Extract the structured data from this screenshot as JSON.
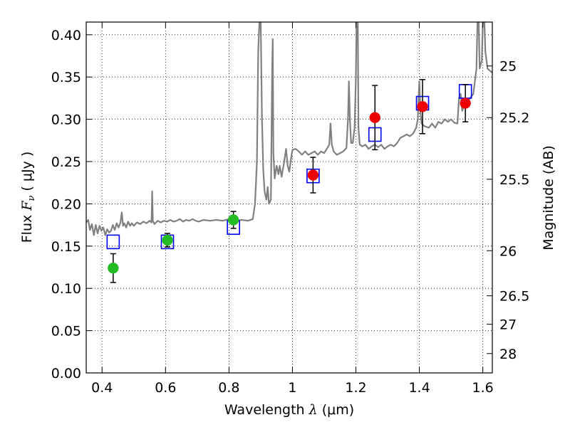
{
  "chart_data": {
    "type": "scatter",
    "title": "",
    "xlabel": "Wavelength  λ (μm)",
    "xlabel_parts": {
      "prefix": "Wavelength  ",
      "symbol": "λ",
      "unit": " (μm)"
    },
    "ylabel": "Flux  Fν  ( μJy )",
    "ylabel_parts": {
      "prefix": "Flux  ",
      "symbol": "F",
      "sub": "ν",
      "unit": "  ( μJy )"
    },
    "y2label": "Magnitude (AB)",
    "xlim": [
      0.35,
      1.63
    ],
    "ylim": [
      0.0,
      0.415
    ],
    "grid": true,
    "x_ticks": [
      {
        "value": 0.4,
        "label": "0.4"
      },
      {
        "value": 0.6,
        "label": "0.6"
      },
      {
        "value": 0.8,
        "label": "0.8"
      },
      {
        "value": 1.0,
        "label": "1"
      },
      {
        "value": 1.2,
        "label": "1.2"
      },
      {
        "value": 1.4,
        "label": "1.4"
      },
      {
        "value": 1.6,
        "label": "1.6"
      }
    ],
    "y_ticks": [
      {
        "value": 0.0,
        "label": "0.00"
      },
      {
        "value": 0.05,
        "label": "0.05"
      },
      {
        "value": 0.1,
        "label": "0.10"
      },
      {
        "value": 0.15,
        "label": "0.15"
      },
      {
        "value": 0.2,
        "label": "0.20"
      },
      {
        "value": 0.25,
        "label": "0.25"
      },
      {
        "value": 0.3,
        "label": "0.30"
      },
      {
        "value": 0.35,
        "label": "0.35"
      },
      {
        "value": 0.4,
        "label": "0.40"
      }
    ],
    "y2_ticks": [
      {
        "mag": 25,
        "label": "25"
      },
      {
        "mag": 25.2,
        "label": "25.2"
      },
      {
        "mag": 25.5,
        "label": "25.5"
      },
      {
        "mag": 26,
        "label": "26"
      },
      {
        "mag": 26.5,
        "label": "26.5"
      },
      {
        "mag": 27,
        "label": "27"
      },
      {
        "mag": 28,
        "label": "28"
      }
    ],
    "observed_points": [
      {
        "x": 0.435,
        "y": 0.124,
        "err": 0.017,
        "color": "#22bb22"
      },
      {
        "x": 0.606,
        "y": 0.157,
        "err": 0.008,
        "color": "#22bb22"
      },
      {
        "x": 0.814,
        "y": 0.181,
        "err": 0.01,
        "color": "#22bb22"
      },
      {
        "x": 1.065,
        "y": 0.234,
        "err": 0.021,
        "color": "#ee0000"
      },
      {
        "x": 1.26,
        "y": 0.302,
        "err": 0.038,
        "color": "#ee0000"
      },
      {
        "x": 1.41,
        "y": 0.315,
        "err": 0.032,
        "color": "#ee0000"
      },
      {
        "x": 1.545,
        "y": 0.319,
        "err": 0.022,
        "color": "#ee0000"
      }
    ],
    "model_points": [
      {
        "x": 0.435,
        "y": 0.155
      },
      {
        "x": 0.606,
        "y": 0.155
      },
      {
        "x": 0.814,
        "y": 0.172
      },
      {
        "x": 1.065,
        "y": 0.233
      },
      {
        "x": 1.26,
        "y": 0.282
      },
      {
        "x": 1.41,
        "y": 0.319
      },
      {
        "x": 1.545,
        "y": 0.333
      }
    ],
    "model_spectrum": {
      "color": "#808080",
      "points": [
        [
          0.35,
          0.178
        ],
        [
          0.356,
          0.181
        ],
        [
          0.362,
          0.169
        ],
        [
          0.368,
          0.176
        ],
        [
          0.374,
          0.163
        ],
        [
          0.38,
          0.175
        ],
        [
          0.386,
          0.165
        ],
        [
          0.392,
          0.174
        ],
        [
          0.398,
          0.168
        ],
        [
          0.404,
          0.172
        ],
        [
          0.41,
          0.163
        ],
        [
          0.416,
          0.17
        ],
        [
          0.422,
          0.166
        ],
        [
          0.428,
          0.168
        ],
        [
          0.434,
          0.175
        ],
        [
          0.44,
          0.169
        ],
        [
          0.446,
          0.177
        ],
        [
          0.452,
          0.172
        ],
        [
          0.458,
          0.178
        ],
        [
          0.462,
          0.19
        ],
        [
          0.466,
          0.174
        ],
        [
          0.47,
          0.177
        ],
        [
          0.476,
          0.172
        ],
        [
          0.482,
          0.179
        ],
        [
          0.488,
          0.174
        ],
        [
          0.494,
          0.177
        ],
        [
          0.5,
          0.174
        ],
        [
          0.51,
          0.178
        ],
        [
          0.52,
          0.176
        ],
        [
          0.53,
          0.179
        ],
        [
          0.54,
          0.177
        ],
        [
          0.55,
          0.18
        ],
        [
          0.556,
          0.178
        ],
        [
          0.558,
          0.215
        ],
        [
          0.56,
          0.18
        ],
        [
          0.565,
          0.176
        ],
        [
          0.575,
          0.18
        ],
        [
          0.585,
          0.178
        ],
        [
          0.595,
          0.18
        ],
        [
          0.605,
          0.179
        ],
        [
          0.615,
          0.181
        ],
        [
          0.625,
          0.179
        ],
        [
          0.635,
          0.18
        ],
        [
          0.645,
          0.182
        ],
        [
          0.655,
          0.179
        ],
        [
          0.665,
          0.181
        ],
        [
          0.675,
          0.18
        ],
        [
          0.685,
          0.182
        ],
        [
          0.695,
          0.18
        ],
        [
          0.705,
          0.179
        ],
        [
          0.72,
          0.181
        ],
        [
          0.74,
          0.18
        ],
        [
          0.76,
          0.181
        ],
        [
          0.78,
          0.18
        ],
        [
          0.8,
          0.182
        ],
        [
          0.82,
          0.18
        ],
        [
          0.84,
          0.181
        ],
        [
          0.86,
          0.18
        ],
        [
          0.875,
          0.182
        ],
        [
          0.882,
          0.2
        ],
        [
          0.888,
          0.25
        ],
        [
          0.892,
          0.38
        ],
        [
          0.896,
          0.415
        ],
        [
          0.9,
          0.415
        ],
        [
          0.904,
          0.3
        ],
        [
          0.908,
          0.24
        ],
        [
          0.912,
          0.215
        ],
        [
          0.918,
          0.205
        ],
        [
          0.922,
          0.22
        ],
        [
          0.926,
          0.2
        ],
        [
          0.932,
          0.205
        ],
        [
          0.936,
          0.36
        ],
        [
          0.938,
          0.395
        ],
        [
          0.94,
          0.26
        ],
        [
          0.944,
          0.23
        ],
        [
          0.95,
          0.245
        ],
        [
          0.956,
          0.235
        ],
        [
          0.96,
          0.245
        ],
        [
          0.966,
          0.232
        ],
        [
          0.974,
          0.25
        ],
        [
          0.98,
          0.265
        ],
        [
          0.985,
          0.245
        ],
        [
          0.99,
          0.238
        ],
        [
          0.996,
          0.255
        ],
        [
          1.0,
          0.264
        ],
        [
          1.01,
          0.265
        ],
        [
          1.02,
          0.262
        ],
        [
          1.03,
          0.258
        ],
        [
          1.04,
          0.262
        ],
        [
          1.05,
          0.258
        ],
        [
          1.06,
          0.26
        ],
        [
          1.07,
          0.262
        ],
        [
          1.08,
          0.258
        ],
        [
          1.09,
          0.262
        ],
        [
          1.1,
          0.26
        ],
        [
          1.11,
          0.266
        ],
        [
          1.116,
          0.27
        ],
        [
          1.12,
          0.295
        ],
        [
          1.124,
          0.27
        ],
        [
          1.13,
          0.262
        ],
        [
          1.14,
          0.258
        ],
        [
          1.15,
          0.26
        ],
        [
          1.16,
          0.262
        ],
        [
          1.17,
          0.266
        ],
        [
          1.175,
          0.3
        ],
        [
          1.178,
          0.345
        ],
        [
          1.181,
          0.3
        ],
        [
          1.185,
          0.272
        ],
        [
          1.19,
          0.272
        ],
        [
          1.196,
          0.29
        ],
        [
          1.2,
          0.35
        ],
        [
          1.202,
          0.415
        ],
        [
          1.206,
          0.415
        ],
        [
          1.208,
          0.29
        ],
        [
          1.212,
          0.27
        ],
        [
          1.22,
          0.268
        ],
        [
          1.23,
          0.27
        ],
        [
          1.24,
          0.265
        ],
        [
          1.25,
          0.268
        ],
        [
          1.26,
          0.27
        ],
        [
          1.27,
          0.267
        ],
        [
          1.28,
          0.27
        ],
        [
          1.29,
          0.265
        ],
        [
          1.3,
          0.268
        ],
        [
          1.31,
          0.27
        ],
        [
          1.32,
          0.268
        ],
        [
          1.33,
          0.272
        ],
        [
          1.34,
          0.278
        ],
        [
          1.35,
          0.28
        ],
        [
          1.36,
          0.282
        ],
        [
          1.37,
          0.28
        ],
        [
          1.38,
          0.283
        ],
        [
          1.39,
          0.29
        ],
        [
          1.395,
          0.3
        ],
        [
          1.398,
          0.33
        ],
        [
          1.4,
          0.345
        ],
        [
          1.403,
          0.31
        ],
        [
          1.407,
          0.295
        ],
        [
          1.415,
          0.292
        ],
        [
          1.43,
          0.29
        ],
        [
          1.44,
          0.295
        ],
        [
          1.45,
          0.29
        ],
        [
          1.46,
          0.297
        ],
        [
          1.47,
          0.295
        ],
        [
          1.48,
          0.3
        ],
        [
          1.49,
          0.297
        ],
        [
          1.5,
          0.3
        ],
        [
          1.51,
          0.296
        ],
        [
          1.52,
          0.295
        ],
        [
          1.525,
          0.325
        ],
        [
          1.53,
          0.33
        ],
        [
          1.535,
          0.31
        ],
        [
          1.54,
          0.315
        ],
        [
          1.55,
          0.32
        ],
        [
          1.56,
          0.325
        ],
        [
          1.57,
          0.33
        ],
        [
          1.58,
          0.36
        ],
        [
          1.583,
          0.415
        ],
        [
          1.587,
          0.415
        ],
        [
          1.59,
          0.36
        ],
        [
          1.597,
          0.37
        ],
        [
          1.6,
          0.415
        ],
        [
          1.605,
          0.415
        ],
        [
          1.608,
          0.38
        ],
        [
          1.615,
          0.36
        ],
        [
          1.63,
          0.355
        ]
      ]
    }
  }
}
